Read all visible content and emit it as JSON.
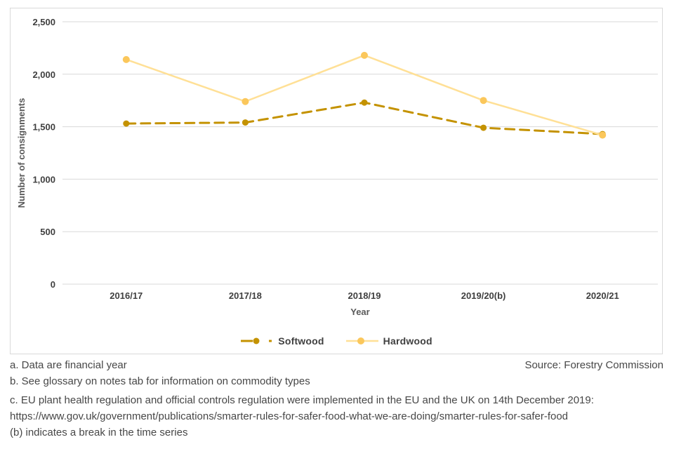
{
  "chart_data": {
    "type": "line",
    "title": "",
    "xlabel": "Year",
    "ylabel": "Number of consignments",
    "categories": [
      "2016/17",
      "2017/18",
      "2018/19",
      "2019/20(b)",
      "2020/21"
    ],
    "series": [
      {
        "name": "Softwood",
        "values": [
          1530,
          1540,
          1730,
          1490,
          1430
        ],
        "color": "#C49200",
        "marker_color": "#C49200",
        "dash": true
      },
      {
        "name": "Hardwood",
        "values": [
          2140,
          1740,
          2180,
          1750,
          1420
        ],
        "color": "#FFE096",
        "marker_color": "#FBC75B",
        "dash": false
      }
    ],
    "ylim": [
      0,
      2500
    ],
    "yticks": [
      0,
      500,
      1000,
      1500,
      2000,
      2500
    ],
    "ytick_labels": [
      "0",
      "500",
      "1,000",
      "1,500",
      "2,000",
      "2,500"
    ],
    "grid": true,
    "legend_position": "bottom"
  },
  "colors": {
    "gridline": "#D9D9D9",
    "border": "#D9D9D9",
    "tick_label": "#3F3F3F",
    "axis_title": "#595959",
    "footnote_text": "#474747"
  },
  "footnotes": {
    "note_a": "a. Data are financial year",
    "source": "Source: Forestry Commission",
    "note_b": "b. See glossary on notes tab for information on commodity types",
    "note_c": "c. EU plant health regulation and official controls regulation were implemented in the EU and the UK on 14th December 2019:",
    "note_c_url": "https://www.gov.uk/government/publications/smarter-rules-for-safer-food-what-we-are-doing/smarter-rules-for-safer-food",
    "note_break": "(b) indicates a break in the time series"
  }
}
